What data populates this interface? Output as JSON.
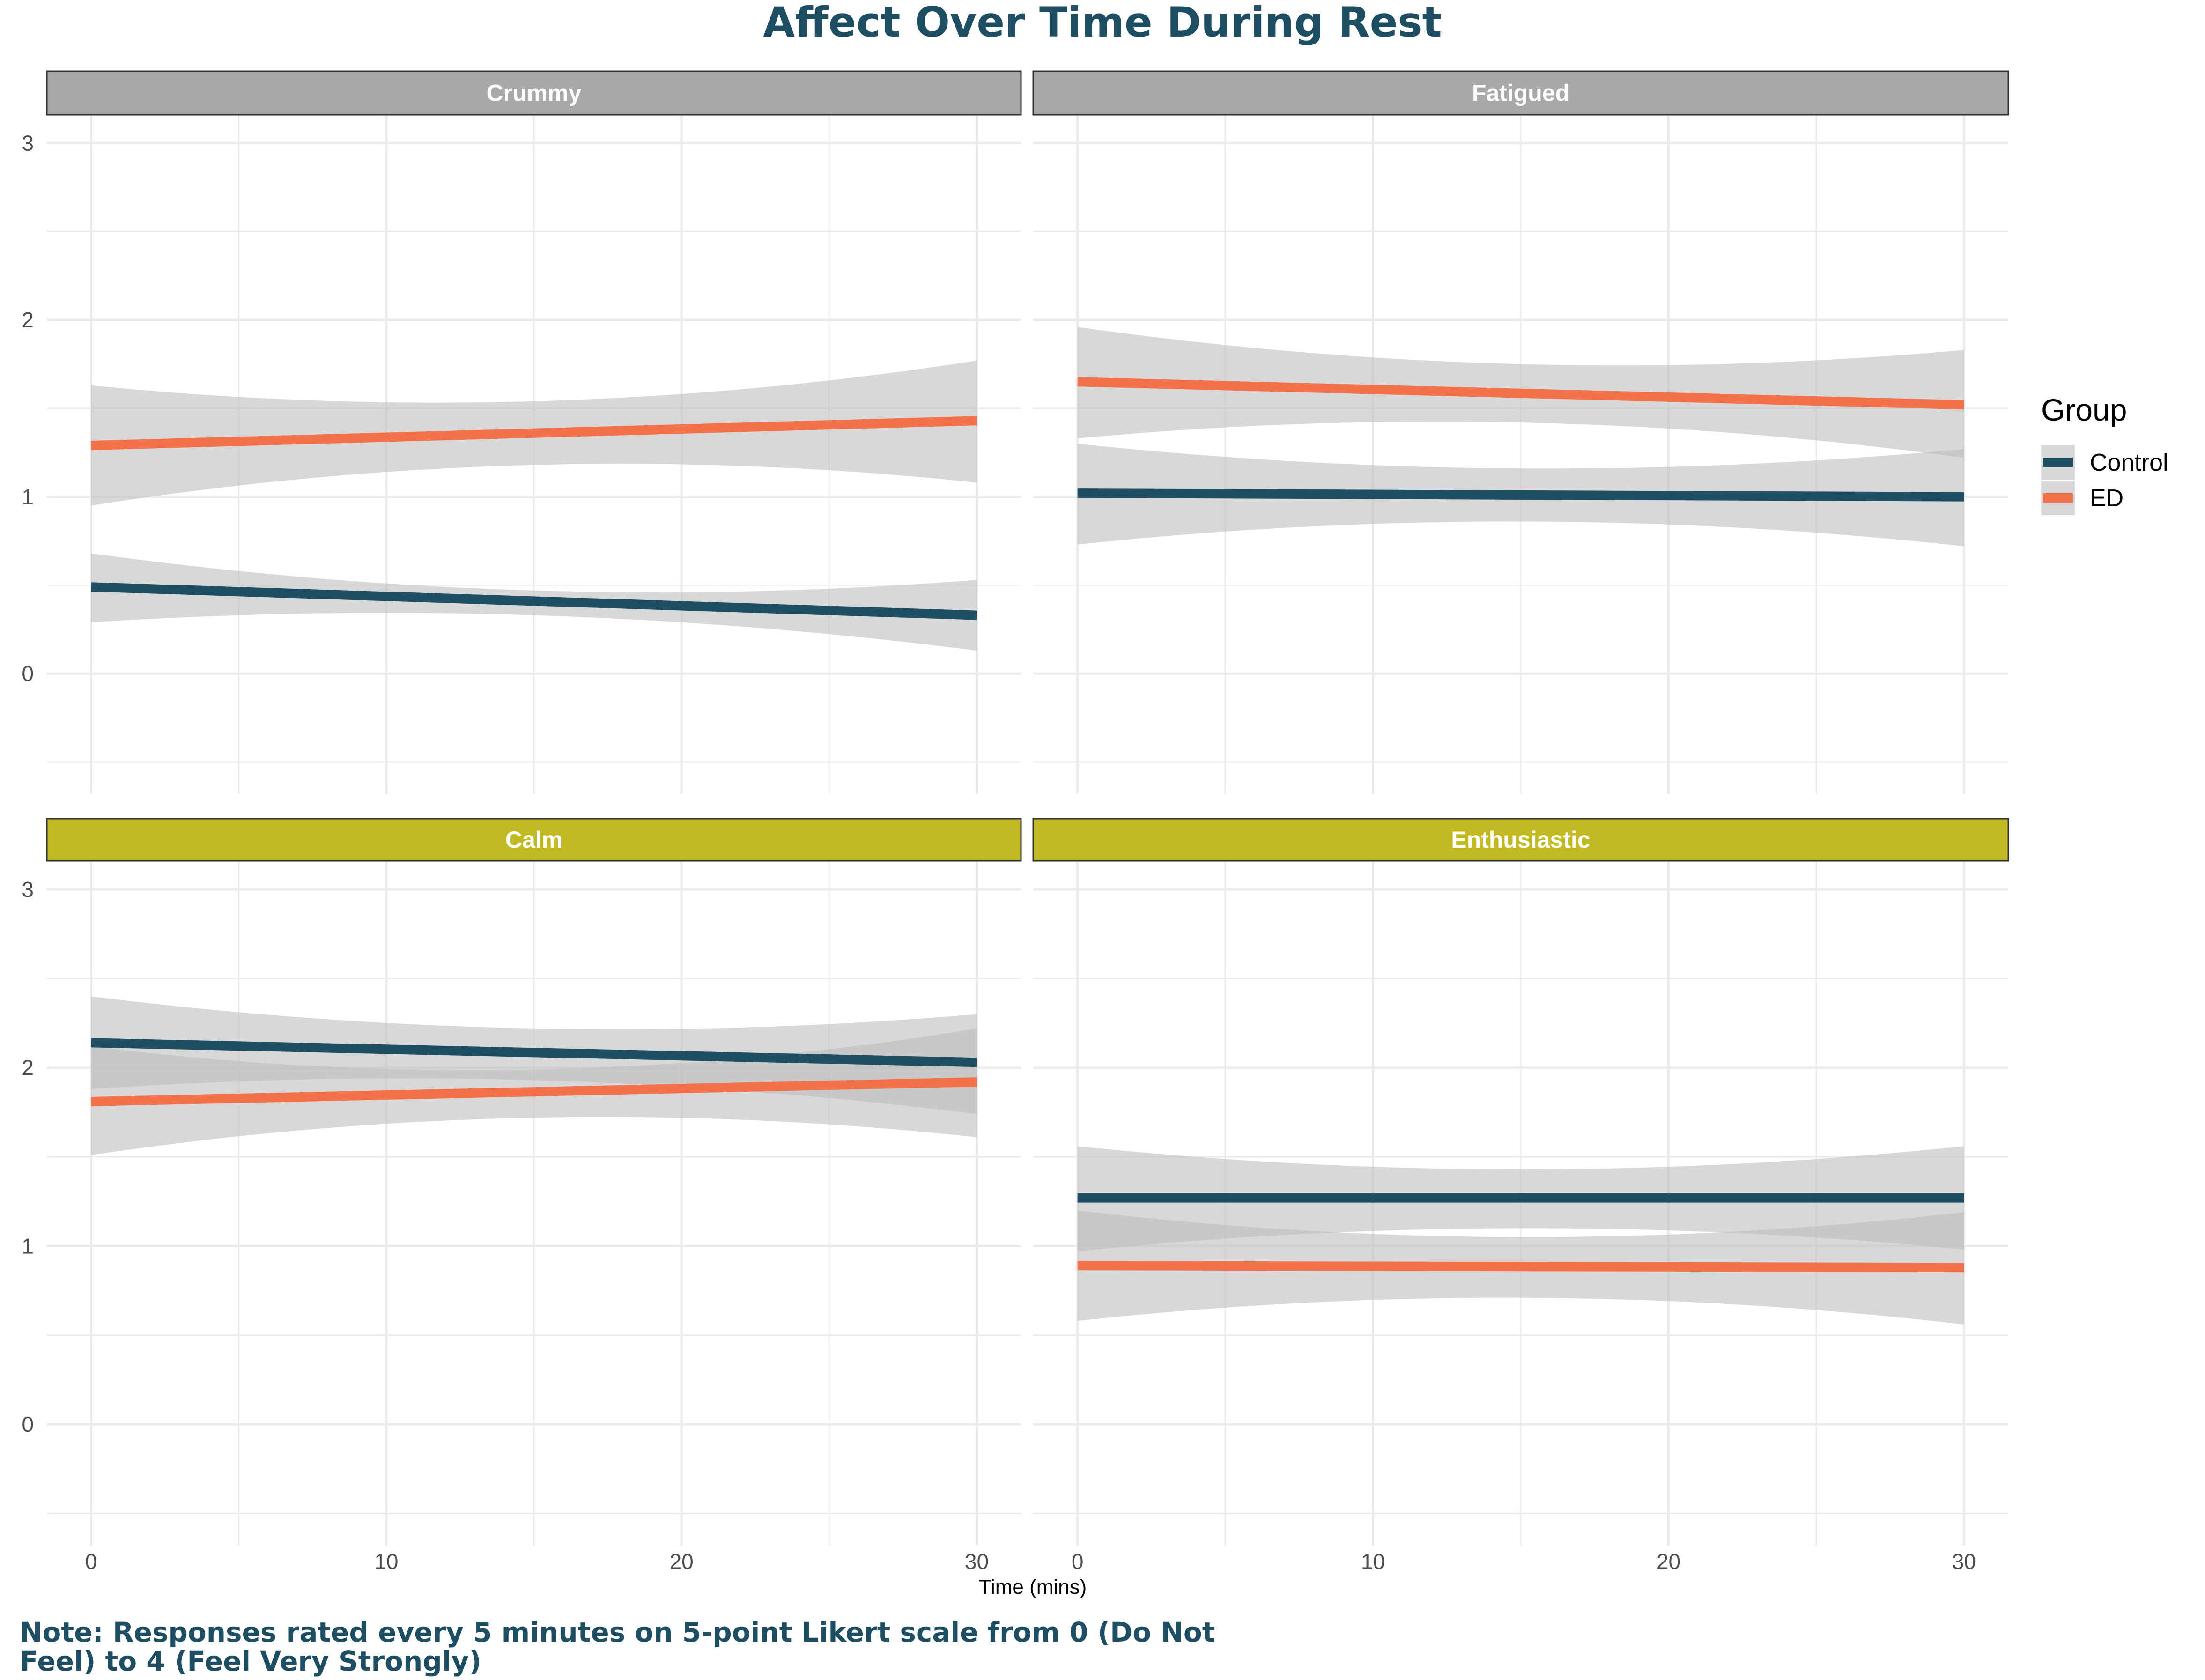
{
  "chart_data": {
    "type": "line",
    "title": "Affect Over Time During Rest",
    "xlabel": "Time (mins)",
    "ylabel": "",
    "x_ticks": [
      0,
      10,
      20,
      30
    ],
    "y_ticks": [
      0,
      1,
      2,
      3
    ],
    "xlim": [
      -1.5,
      31.5
    ],
    "ylim": [
      -0.68,
      3.16
    ],
    "grid": true,
    "legend": {
      "title": "Group",
      "position": "right",
      "entries": [
        {
          "name": "Control",
          "color": "#1d4e64"
        },
        {
          "name": "ED",
          "color": "#f4714b"
        }
      ]
    },
    "colors": {
      "title": "#1d4e64",
      "note": "#1d4e64",
      "strip_negative": "#a9a9a9",
      "strip_positive": "#c2ba22",
      "ribbon": "#bebebe",
      "grid": "#ebebeb"
    },
    "facets": [
      {
        "name": "Crummy",
        "strip": "negative",
        "series": [
          {
            "name": "ED",
            "x": [
              0,
              30
            ],
            "y": [
              1.29,
              1.43
            ],
            "band": {
              "x": [
                0,
                15,
                30
              ],
              "lower": [
                0.95,
                1.18,
                1.08
              ],
              "upper": [
                1.63,
                1.54,
                1.77
              ]
            }
          },
          {
            "name": "Control",
            "x": [
              0,
              30
            ],
            "y": [
              0.49,
              0.33
            ],
            "band": {
              "x": [
                0,
                15,
                30
              ],
              "lower": [
                0.29,
                0.33,
                0.13
              ],
              "upper": [
                0.68,
                0.47,
                0.53
              ]
            }
          }
        ]
      },
      {
        "name": "Fatigued",
        "strip": "negative",
        "series": [
          {
            "name": "ED",
            "x": [
              0,
              30
            ],
            "y": [
              1.65,
              1.52
            ],
            "band": {
              "x": [
                0,
                15,
                30
              ],
              "lower": [
                1.33,
                1.42,
                1.22
              ],
              "upper": [
                1.96,
                1.75,
                1.83
              ]
            }
          },
          {
            "name": "Control",
            "x": [
              0,
              30
            ],
            "y": [
              1.02,
              1.0
            ],
            "band": {
              "x": [
                0,
                15,
                30
              ],
              "lower": [
                0.73,
                0.86,
                0.72
              ],
              "upper": [
                1.3,
                1.16,
                1.27
              ]
            }
          }
        ]
      },
      {
        "name": "Calm",
        "strip": "positive",
        "series": [
          {
            "name": "Control",
            "x": [
              0,
              30
            ],
            "y": [
              2.14,
              2.03
            ],
            "band": {
              "x": [
                0,
                15,
                30
              ],
              "lower": [
                1.88,
                1.93,
                1.74
              ],
              "upper": [
                2.4,
                2.22,
                2.3
              ]
            }
          },
          {
            "name": "ED",
            "x": [
              0,
              30
            ],
            "y": [
              1.81,
              1.92
            ],
            "band": {
              "x": [
                0,
                15,
                30
              ],
              "lower": [
                1.51,
                1.72,
                1.61
              ],
              "upper": [
                2.12,
                1.99,
                2.22
              ]
            }
          }
        ]
      },
      {
        "name": "Enthusiastic",
        "strip": "positive",
        "series": [
          {
            "name": "Control",
            "x": [
              0,
              30
            ],
            "y": [
              1.27,
              1.27
            ],
            "band": {
              "x": [
                0,
                15,
                30
              ],
              "lower": [
                0.97,
                1.1,
                0.98
              ],
              "upper": [
                1.56,
                1.43,
                1.56
              ]
            }
          },
          {
            "name": "ED",
            "x": [
              0,
              30
            ],
            "y": [
              0.89,
              0.88
            ],
            "band": {
              "x": [
                0,
                15,
                30
              ],
              "lower": [
                0.58,
                0.71,
                0.56
              ],
              "upper": [
                1.2,
                1.05,
                1.19
              ]
            }
          }
        ]
      }
    ]
  },
  "note": "Note: Responses rated every 5 minutes on 5-point Likert scale from 0 (Do Not Feel) to 4 (Feel Very Strongly)"
}
